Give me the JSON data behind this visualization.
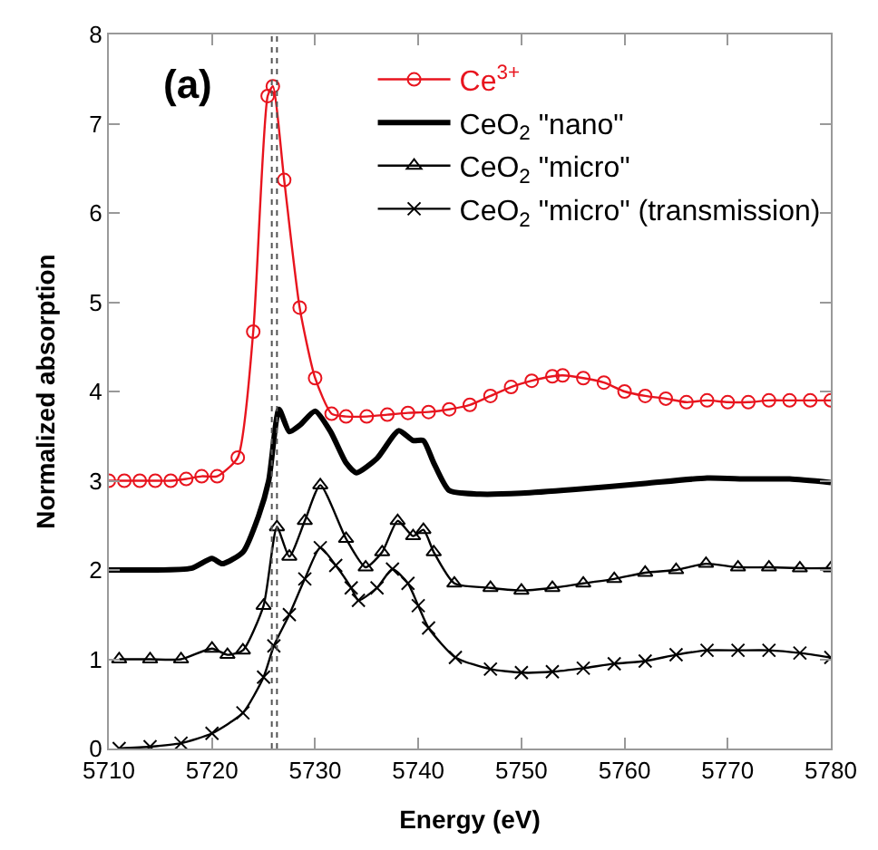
{
  "chart_data": {
    "type": "line",
    "xlabel": "Energy (eV)",
    "ylabel": "Normalized absorption",
    "annotations": [
      "(a)"
    ],
    "xlim": [
      5710,
      5780
    ],
    "xticks": [
      5710,
      5720,
      5730,
      5740,
      5750,
      5760,
      5770,
      5780
    ],
    "ylim": [
      0,
      8
    ],
    "yticks": [
      0,
      1,
      2,
      3,
      4,
      5,
      6,
      7,
      8
    ],
    "legend": "top right",
    "line_style": "solid",
    "ref_lines": [
      {
        "axis": "x",
        "value": 5725.8,
        "label": null,
        "color": "#555555",
        "line_style": "dotted"
      },
      {
        "axis": "x",
        "value": 5726.3,
        "label": null,
        "color": "#555555",
        "line_style": "dotted"
      }
    ],
    "series": [
      {
        "name": "Ce$^{3+}$",
        "color": "#e8141e",
        "marker": "circle",
        "x": [
          5710,
          5711.5,
          5713,
          5714.5,
          5716,
          5717.5,
          5719,
          5720.5,
          5722.5,
          5724,
          5725.4,
          5725.9,
          5727,
          5728.5,
          5730,
          5731.6,
          5733,
          5735,
          5737,
          5739,
          5741,
          5743,
          5745,
          5747,
          5749,
          5751,
          5753,
          5754,
          5756,
          5758,
          5760,
          5762,
          5764,
          5766,
          5768,
          5770,
          5772,
          5774,
          5776,
          5778,
          5780
        ],
        "values": [
          3.0,
          3.0,
          3.0,
          3.0,
          3.0,
          3.02,
          3.05,
          3.05,
          3.26,
          4.67,
          7.31,
          7.42,
          6.37,
          4.94,
          4.15,
          3.75,
          3.72,
          3.72,
          3.74,
          3.76,
          3.77,
          3.8,
          3.85,
          3.95,
          4.05,
          4.12,
          4.17,
          4.18,
          4.15,
          4.1,
          4.0,
          3.95,
          3.92,
          3.88,
          3.9,
          3.88,
          3.88,
          3.9,
          3.9,
          3.9,
          3.9
        ]
      },
      {
        "name": "CeO$_{2}$ \"nano\"",
        "color": "#000000",
        "marker": "none",
        "x": [
          5710,
          5714,
          5718,
          5720,
          5721,
          5723,
          5724.5,
          5725.5,
          5726.5,
          5727.5,
          5728.5,
          5730,
          5731.5,
          5733,
          5734,
          5736,
          5738.1,
          5739.5,
          5740.5,
          5741.5,
          5743,
          5746,
          5750,
          5755,
          5762,
          5768,
          5772,
          5776,
          5780
        ],
        "values": [
          2.0,
          2.0,
          2.02,
          2.13,
          2.07,
          2.2,
          2.6,
          3.0,
          3.8,
          3.55,
          3.62,
          3.78,
          3.55,
          3.2,
          3.09,
          3.25,
          3.56,
          3.45,
          3.45,
          3.2,
          2.89,
          2.85,
          2.86,
          2.9,
          2.97,
          3.03,
          3.02,
          3.02,
          2.98
        ]
      },
      {
        "name": "CeO$_{2}$ \"micro\"",
        "color": "#000000",
        "marker": "triangle",
        "x": [
          5711,
          5714,
          5717,
          5720,
          5721.5,
          5723,
          5725,
          5726.3,
          5727.5,
          5729,
          5730.5,
          5733,
          5734.9,
          5736.5,
          5738,
          5739.5,
          5740.5,
          5741.5,
          5743.5,
          5747,
          5750,
          5753,
          5756,
          5759,
          5762,
          5765,
          5767.9,
          5771,
          5774,
          5777,
          5780
        ],
        "values": [
          1.0,
          1.0,
          1.0,
          1.12,
          1.05,
          1.1,
          1.6,
          2.48,
          2.15,
          2.55,
          2.95,
          2.35,
          2.03,
          2.2,
          2.55,
          2.38,
          2.45,
          2.2,
          1.85,
          1.8,
          1.77,
          1.8,
          1.85,
          1.9,
          1.97,
          2.0,
          2.07,
          2.03,
          2.03,
          2.02,
          2.02
        ]
      },
      {
        "name": "CeO$_{2}$ \"micro\" (transmission)",
        "color": "#000000",
        "marker": "cross",
        "x": [
          5711,
          5714,
          5717,
          5720,
          5723,
          5725,
          5726,
          5727.5,
          5729,
          5730.5,
          5732,
          5733.5,
          5734.2,
          5736,
          5737.5,
          5739,
          5740,
          5741,
          5743.6,
          5747,
          5750,
          5753,
          5756,
          5759,
          5762,
          5765,
          5768,
          5771,
          5774,
          5777,
          5780
        ],
        "values": [
          0.0,
          0.02,
          0.06,
          0.17,
          0.4,
          0.8,
          1.15,
          1.5,
          1.9,
          2.25,
          2.05,
          1.8,
          1.66,
          1.8,
          2.01,
          1.85,
          1.6,
          1.35,
          1.02,
          0.89,
          0.85,
          0.86,
          0.9,
          0.95,
          0.98,
          1.05,
          1.1,
          1.1,
          1.1,
          1.07,
          1.02
        ]
      }
    ]
  }
}
